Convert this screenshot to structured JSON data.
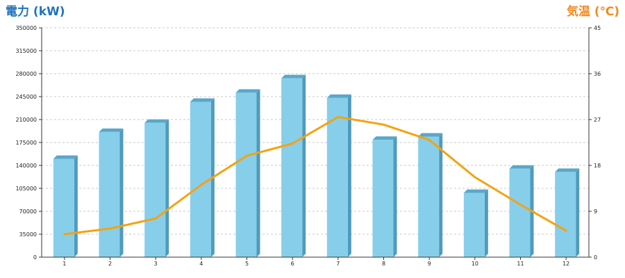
{
  "chart_data": {
    "type": "bar+line",
    "categories": [
      "1",
      "2",
      "3",
      "4",
      "5",
      "6",
      "7",
      "8",
      "9",
      "10",
      "11",
      "12"
    ],
    "series": [
      {
        "values": [
          150000,
          191000,
          205000,
          237000,
          251000,
          273000,
          243000,
          179000,
          184000,
          98000,
          135000,
          130000
        ],
        "axis": "left",
        "kind": "bar",
        "color": "#87ceeb"
      },
      {
        "values": [
          4.5,
          5.6,
          7.6,
          14.2,
          19.9,
          22.3,
          27.5,
          26.0,
          23.0,
          15.7,
          10.3,
          5.2
        ],
        "axis": "right",
        "kind": "line",
        "color": "#f5a20f"
      }
    ],
    "left_axis": {
      "title": "電力 (kW)",
      "min": 0,
      "max": 350000,
      "step": 35000,
      "color": "#1e73be"
    },
    "right_axis": {
      "title": "気温 (℃)",
      "min": 0,
      "max": 45,
      "step": 9,
      "color": "#f28a1e"
    },
    "grid": "horizontal-dashed"
  }
}
